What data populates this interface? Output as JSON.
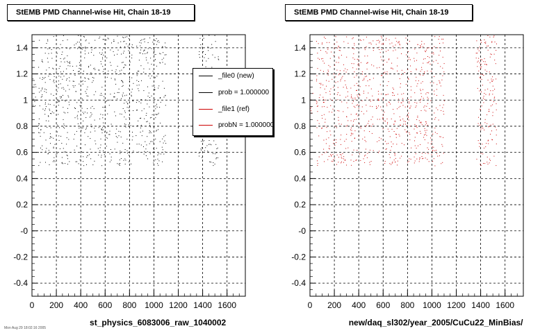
{
  "footer_text": "Mon Aug 29 18:02:16 2005",
  "chart_data": [
    {
      "type": "scatter",
      "title": "StEMB PMD Channel-wise Hit, Chain 18-19",
      "xlabel": "st_physics_6083006_raw_1040002",
      "ylabel": "",
      "xlim": [
        0,
        1750
      ],
      "ylim": [
        -0.5,
        1.5
      ],
      "x_ticks": [
        "0",
        "200",
        "400",
        "600",
        "800",
        "1000",
        "1200",
        "1400",
        "1600"
      ],
      "y_ticks": [
        "-0.4",
        "-0.2",
        "-0",
        "0.2",
        "0.4",
        "0.6",
        "0.8",
        "1",
        "1.2",
        "1.4"
      ],
      "grid": true,
      "series": [
        {
          "color": "#000000",
          "clusters": [
            {
              "x_range": [
                0,
                30
              ],
              "y_range": [
                0.9,
                1.2
              ]
            },
            {
              "x_range": [
                50,
                310
              ],
              "y_range": [
                0.5,
                1.5
              ]
            },
            {
              "x_range": [
                330,
                520
              ],
              "y_range": [
                0.5,
                1.5
              ]
            },
            {
              "x_range": [
                540,
                830
              ],
              "y_range": [
                0.5,
                1.5
              ]
            },
            {
              "x_range": [
                850,
                1100
              ],
              "y_range": [
                0.5,
                1.5
              ]
            },
            {
              "x_range": [
                1360,
                1530
              ],
              "y_range": [
                0.5,
                1.5
              ]
            }
          ]
        }
      ],
      "legend": {
        "placement": "top-right",
        "entries": [
          {
            "text": "_file0 (new)",
            "color": "#000000"
          },
          {
            "text": "prob = 1.000000",
            "color": "#000000"
          },
          {
            "text": "_file1 (ref)",
            "color": "#cc0000"
          },
          {
            "text": "probN = 1.000000",
            "color": "#cc0000"
          }
        ]
      }
    },
    {
      "type": "scatter",
      "title": "StEMB PMD Channel-wise Hit, Chain 18-19",
      "xlabel": "new/daq_sl302/year_2005/CuCu22_MinBias/",
      "ylabel": "",
      "xlim": [
        0,
        1750
      ],
      "ylim": [
        -0.5,
        1.5
      ],
      "x_ticks": [
        "0",
        "200",
        "400",
        "600",
        "800",
        "1000",
        "1200",
        "1400",
        "1600"
      ],
      "y_ticks": [
        "-0.4",
        "-0.2",
        "-0",
        "0.2",
        "0.4",
        "0.6",
        "0.8",
        "1",
        "1.2",
        "1.4"
      ],
      "grid": true,
      "series": [
        {
          "color": "#cc0000",
          "clusters": [
            {
              "x_range": [
                0,
                30
              ],
              "y_range": [
                0.9,
                1.2
              ]
            },
            {
              "x_range": [
                50,
                310
              ],
              "y_range": [
                0.5,
                1.5
              ]
            },
            {
              "x_range": [
                330,
                520
              ],
              "y_range": [
                0.5,
                1.5
              ]
            },
            {
              "x_range": [
                540,
                830
              ],
              "y_range": [
                0.5,
                1.5
              ]
            },
            {
              "x_range": [
                850,
                1100
              ],
              "y_range": [
                0.5,
                1.5
              ]
            },
            {
              "x_range": [
                1360,
                1530
              ],
              "y_range": [
                0.5,
                1.5
              ]
            }
          ]
        }
      ]
    }
  ]
}
